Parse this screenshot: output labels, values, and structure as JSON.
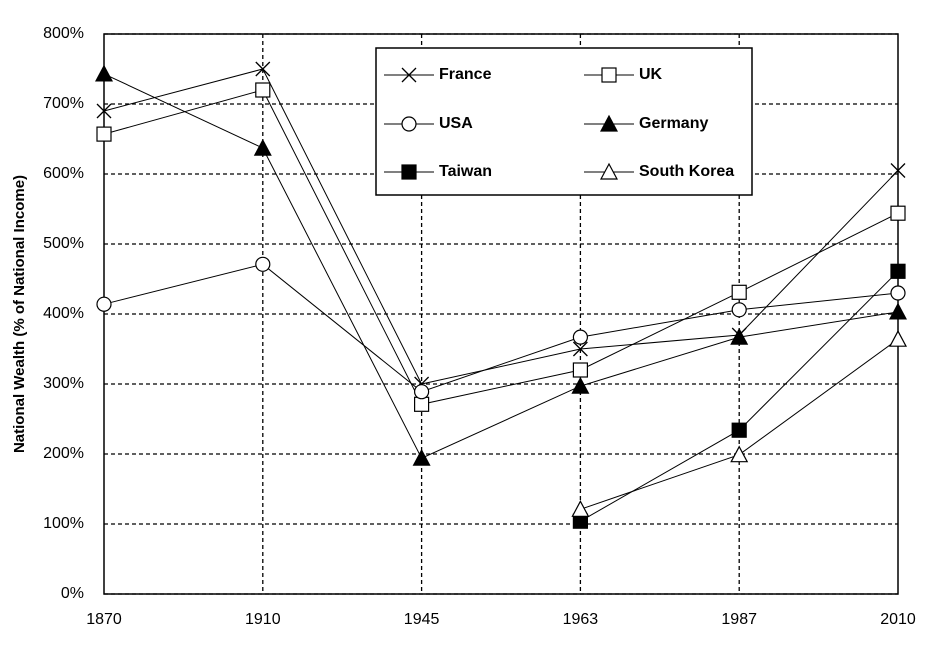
{
  "chart_data": {
    "type": "line",
    "y_label": "National Wealth (% of National Income)",
    "categories": [
      "1870",
      "1910",
      "1945",
      "1963",
      "1987",
      "2010"
    ],
    "series": [
      {
        "name": "France",
        "color": "#000000",
        "marker": "x",
        "values": [
          690,
          750,
          300,
          350,
          370,
          605
        ]
      },
      {
        "name": "UK",
        "color": "#000000",
        "marker": "square-open",
        "values": [
          657,
          720,
          271,
          320,
          431,
          544
        ]
      },
      {
        "name": "USA",
        "color": "#000000",
        "marker": "circle-open",
        "values": [
          414,
          471,
          289,
          367,
          406,
          430
        ]
      },
      {
        "name": "Germany",
        "color": "#000000",
        "marker": "triangle-filled",
        "values": [
          743,
          637,
          194,
          297,
          367,
          403
        ]
      },
      {
        "name": "Taiwan",
        "color": "#000000",
        "marker": "square-filled",
        "values": [
          null,
          null,
          null,
          104,
          234,
          461
        ]
      },
      {
        "name": "South Korea",
        "color": "#000000",
        "marker": "triangle-open",
        "values": [
          null,
          null,
          null,
          121,
          199,
          364
        ]
      }
    ],
    "ylim": [
      0,
      800
    ],
    "yticks": [
      {
        "value": 0,
        "label": "0%"
      },
      {
        "value": 100,
        "label": "100%"
      },
      {
        "value": 200,
        "label": "200%"
      },
      {
        "value": 300,
        "label": "300%"
      },
      {
        "value": 400,
        "label": "400%"
      },
      {
        "value": 500,
        "label": "500%"
      },
      {
        "value": 600,
        "label": "600%"
      },
      {
        "value": 700,
        "label": "700%"
      },
      {
        "value": 800,
        "label": "800%"
      }
    ],
    "grid": true,
    "grid_style": "dashed",
    "legend": "top"
  }
}
